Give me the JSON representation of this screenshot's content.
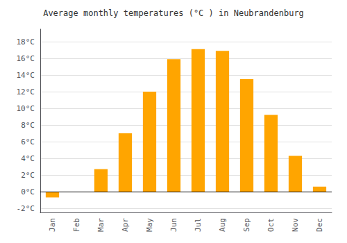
{
  "chart_data": {
    "type": "bar",
    "title": "Average monthly temperatures (°C ) in Neubrandenburg",
    "categories": [
      "Jan",
      "Feb",
      "Mar",
      "Apr",
      "May",
      "Jun",
      "Jul",
      "Aug",
      "Sep",
      "Oct",
      "Nov",
      "Dec"
    ],
    "values": [
      -0.7,
      0.0,
      2.7,
      7.0,
      12.0,
      15.9,
      17.1,
      16.9,
      13.5,
      9.2,
      4.3,
      0.6
    ],
    "color": "#FFA500",
    "ylim": [
      -2.5,
      19.5
    ],
    "yticks": [
      {
        "value": -2,
        "label": "-2°C"
      },
      {
        "value": 0,
        "label": "0°C"
      },
      {
        "value": 2,
        "label": "2°C"
      },
      {
        "value": 4,
        "label": "4°C"
      },
      {
        "value": 6,
        "label": "6°C"
      },
      {
        "value": 8,
        "label": "8°C"
      },
      {
        "value": 10,
        "label": "10°C"
      },
      {
        "value": 12,
        "label": "12°C"
      },
      {
        "value": 14,
        "label": "14°C"
      },
      {
        "value": 16,
        "label": "16°C"
      },
      {
        "value": 18,
        "label": "18°C"
      }
    ],
    "grid": true
  }
}
